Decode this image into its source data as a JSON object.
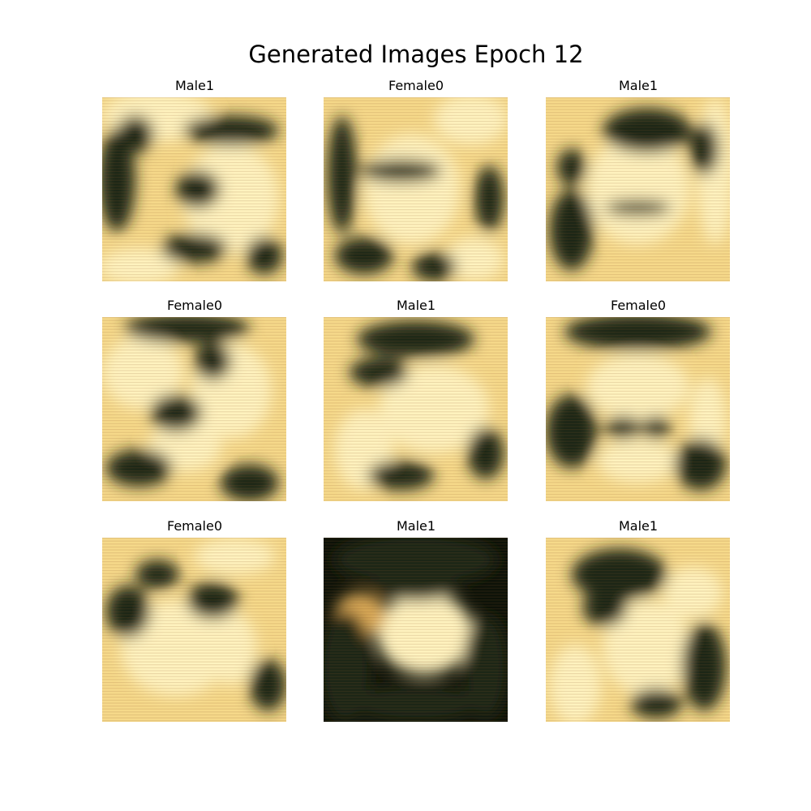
{
  "figure": {
    "title": "Generated Images Epoch 12",
    "panels": [
      {
        "label": "Male1"
      },
      {
        "label": "Female0"
      },
      {
        "label": "Male1"
      },
      {
        "label": "Female0"
      },
      {
        "label": "Male1"
      },
      {
        "label": "Female0"
      },
      {
        "label": "Female0"
      },
      {
        "label": "Male1"
      },
      {
        "label": "Male1"
      }
    ]
  },
  "colors": {
    "highlight": "#fff3bf",
    "light": "#f6d98a",
    "mid": "#d9a957",
    "dark": "#1f2616",
    "shadow": "#0d1208"
  }
}
